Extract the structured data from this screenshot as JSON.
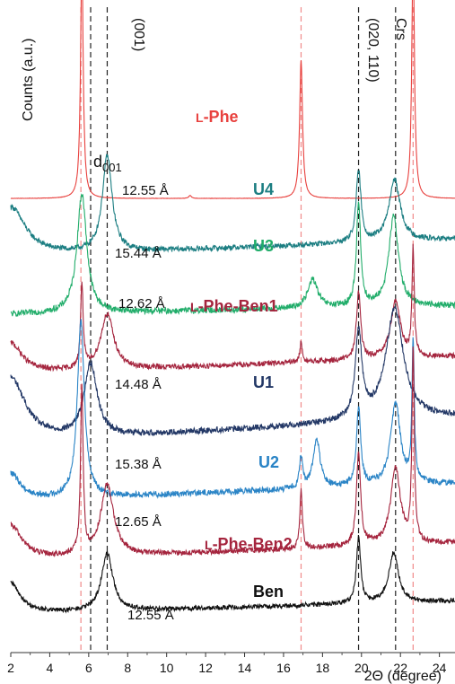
{
  "chart_data": {
    "type": "line",
    "xlabel": "2Θ (degree)",
    "ylabel": "Counts (a.u.)",
    "xlim": [
      2,
      24.8
    ],
    "xticks": [
      2,
      4,
      6,
      8,
      10,
      12,
      14,
      16,
      18,
      20,
      22,
      24
    ],
    "grid": false,
    "reflections": [
      {
        "label": "(001)",
        "x": 6.95
      },
      {
        "label": "(020, 110)",
        "x": 19.85
      },
      {
        "label": "Crs",
        "x": 21.75
      }
    ],
    "reference_lines": {
      "black_dashed_x": [
        6.1,
        6.95,
        19.85,
        21.75
      ],
      "red_dashed_x": [
        5.6,
        16.9,
        22.65
      ]
    },
    "d001_label": "d",
    "d001_subscript": "001",
    "series": [
      {
        "name": "L-Phe",
        "label_prefix": "L",
        "label_suffix": "-Phe",
        "color": "#e8413e",
        "offset": 8.5,
        "baseline": 0.02,
        "slope": 0,
        "noise": 0.004,
        "peaks": [
          [
            5.65,
            6.3,
            0.08
          ],
          [
            11.2,
            0.08,
            0.08
          ],
          [
            16.9,
            3.6,
            0.09
          ],
          [
            22.65,
            6.5,
            0.08
          ]
        ]
      },
      {
        "name": "U4",
        "color": "#1c7e82",
        "d_label": "12.55 Å",
        "offset": 6.9,
        "baseline": 0.1,
        "slope": 0.02,
        "noise": 0.07,
        "peaks": [
          [
            2.0,
            1.3,
            0.9
          ],
          [
            6.95,
            2.5,
            0.3
          ],
          [
            19.85,
            1.85,
            0.15
          ],
          [
            21.7,
            1.6,
            0.35
          ]
        ]
      },
      {
        "name": "U3",
        "color": "#21ad6a",
        "d_label": "15.44 Å",
        "offset": 5.45,
        "baseline": 0.05,
        "slope": 0.01,
        "noise": 0.08,
        "peaks": [
          [
            5.65,
            3.1,
            0.3
          ],
          [
            17.5,
            0.75,
            0.3
          ],
          [
            19.85,
            2.7,
            0.13
          ],
          [
            21.65,
            2.35,
            0.3
          ]
        ]
      },
      {
        "name": "L-Phe-Ben1",
        "label_prefix": "L",
        "label_suffix": "-Phe-Ben1",
        "color": "#a5253e",
        "d_label": "12.62 Å",
        "offset": 3.9,
        "baseline": 0.05,
        "slope": 0.02,
        "noise": 0.07,
        "peaks": [
          [
            2.0,
            0.8,
            0.7
          ],
          [
            5.65,
            2.2,
            0.08
          ],
          [
            6.95,
            1.45,
            0.4
          ],
          [
            16.9,
            0.5,
            0.08
          ],
          [
            19.85,
            1.75,
            0.13
          ],
          [
            21.75,
            1.5,
            0.3
          ],
          [
            22.65,
            2.8,
            0.07
          ]
        ]
      },
      {
        "name": "U1",
        "color": "#233866",
        "d_label": "14.48 Å",
        "offset": 2.1,
        "baseline": 0.05,
        "slope": 0.03,
        "noise": 0.08,
        "peaks": [
          [
            2.0,
            1.7,
            0.9
          ],
          [
            6.1,
            1.9,
            0.4
          ],
          [
            19.85,
            2.3,
            0.2
          ],
          [
            21.7,
            2.9,
            0.55
          ]
        ]
      },
      {
        "name": "U2",
        "color": "#2a84c6",
        "d_label": "15.38 Å",
        "offset": 0.6,
        "baseline": 0.05,
        "slope": 0.02,
        "noise": 0.08,
        "peaks": [
          [
            2.0,
            0.7,
            0.6
          ],
          [
            5.6,
            4.6,
            0.22
          ],
          [
            16.9,
            0.8,
            0.1
          ],
          [
            17.7,
            1.25,
            0.22
          ],
          [
            19.85,
            2.05,
            0.13
          ],
          [
            21.75,
            2.15,
            0.3
          ],
          [
            22.65,
            3.7,
            0.07
          ]
        ]
      },
      {
        "name": "L-Phe-Ben2",
        "label_prefix": "L",
        "label_suffix": "-Phe-Ben2",
        "color": "#a5253e",
        "d_label": "12.65 Å",
        "offset": -0.95,
        "baseline": 0.05,
        "slope": 0.02,
        "noise": 0.07,
        "peaks": [
          [
            2.0,
            0.9,
            0.7
          ],
          [
            5.65,
            4.3,
            0.08
          ],
          [
            6.95,
            1.85,
            0.4
          ],
          [
            16.9,
            1.5,
            0.08
          ],
          [
            19.85,
            2.4,
            0.13
          ],
          [
            21.75,
            2.0,
            0.3
          ],
          [
            22.65,
            5.0,
            0.07
          ]
        ]
      },
      {
        "name": "Ben",
        "color": "#111111",
        "d_label": "12.55 Å",
        "offset": -2.35,
        "baseline": 0.05,
        "slope": 0.015,
        "noise": 0.06,
        "peaks": [
          [
            2.0,
            0.8,
            0.6
          ],
          [
            6.95,
            1.5,
            0.35
          ],
          [
            19.85,
            1.7,
            0.13
          ],
          [
            21.65,
            1.3,
            0.3
          ]
        ]
      }
    ]
  }
}
